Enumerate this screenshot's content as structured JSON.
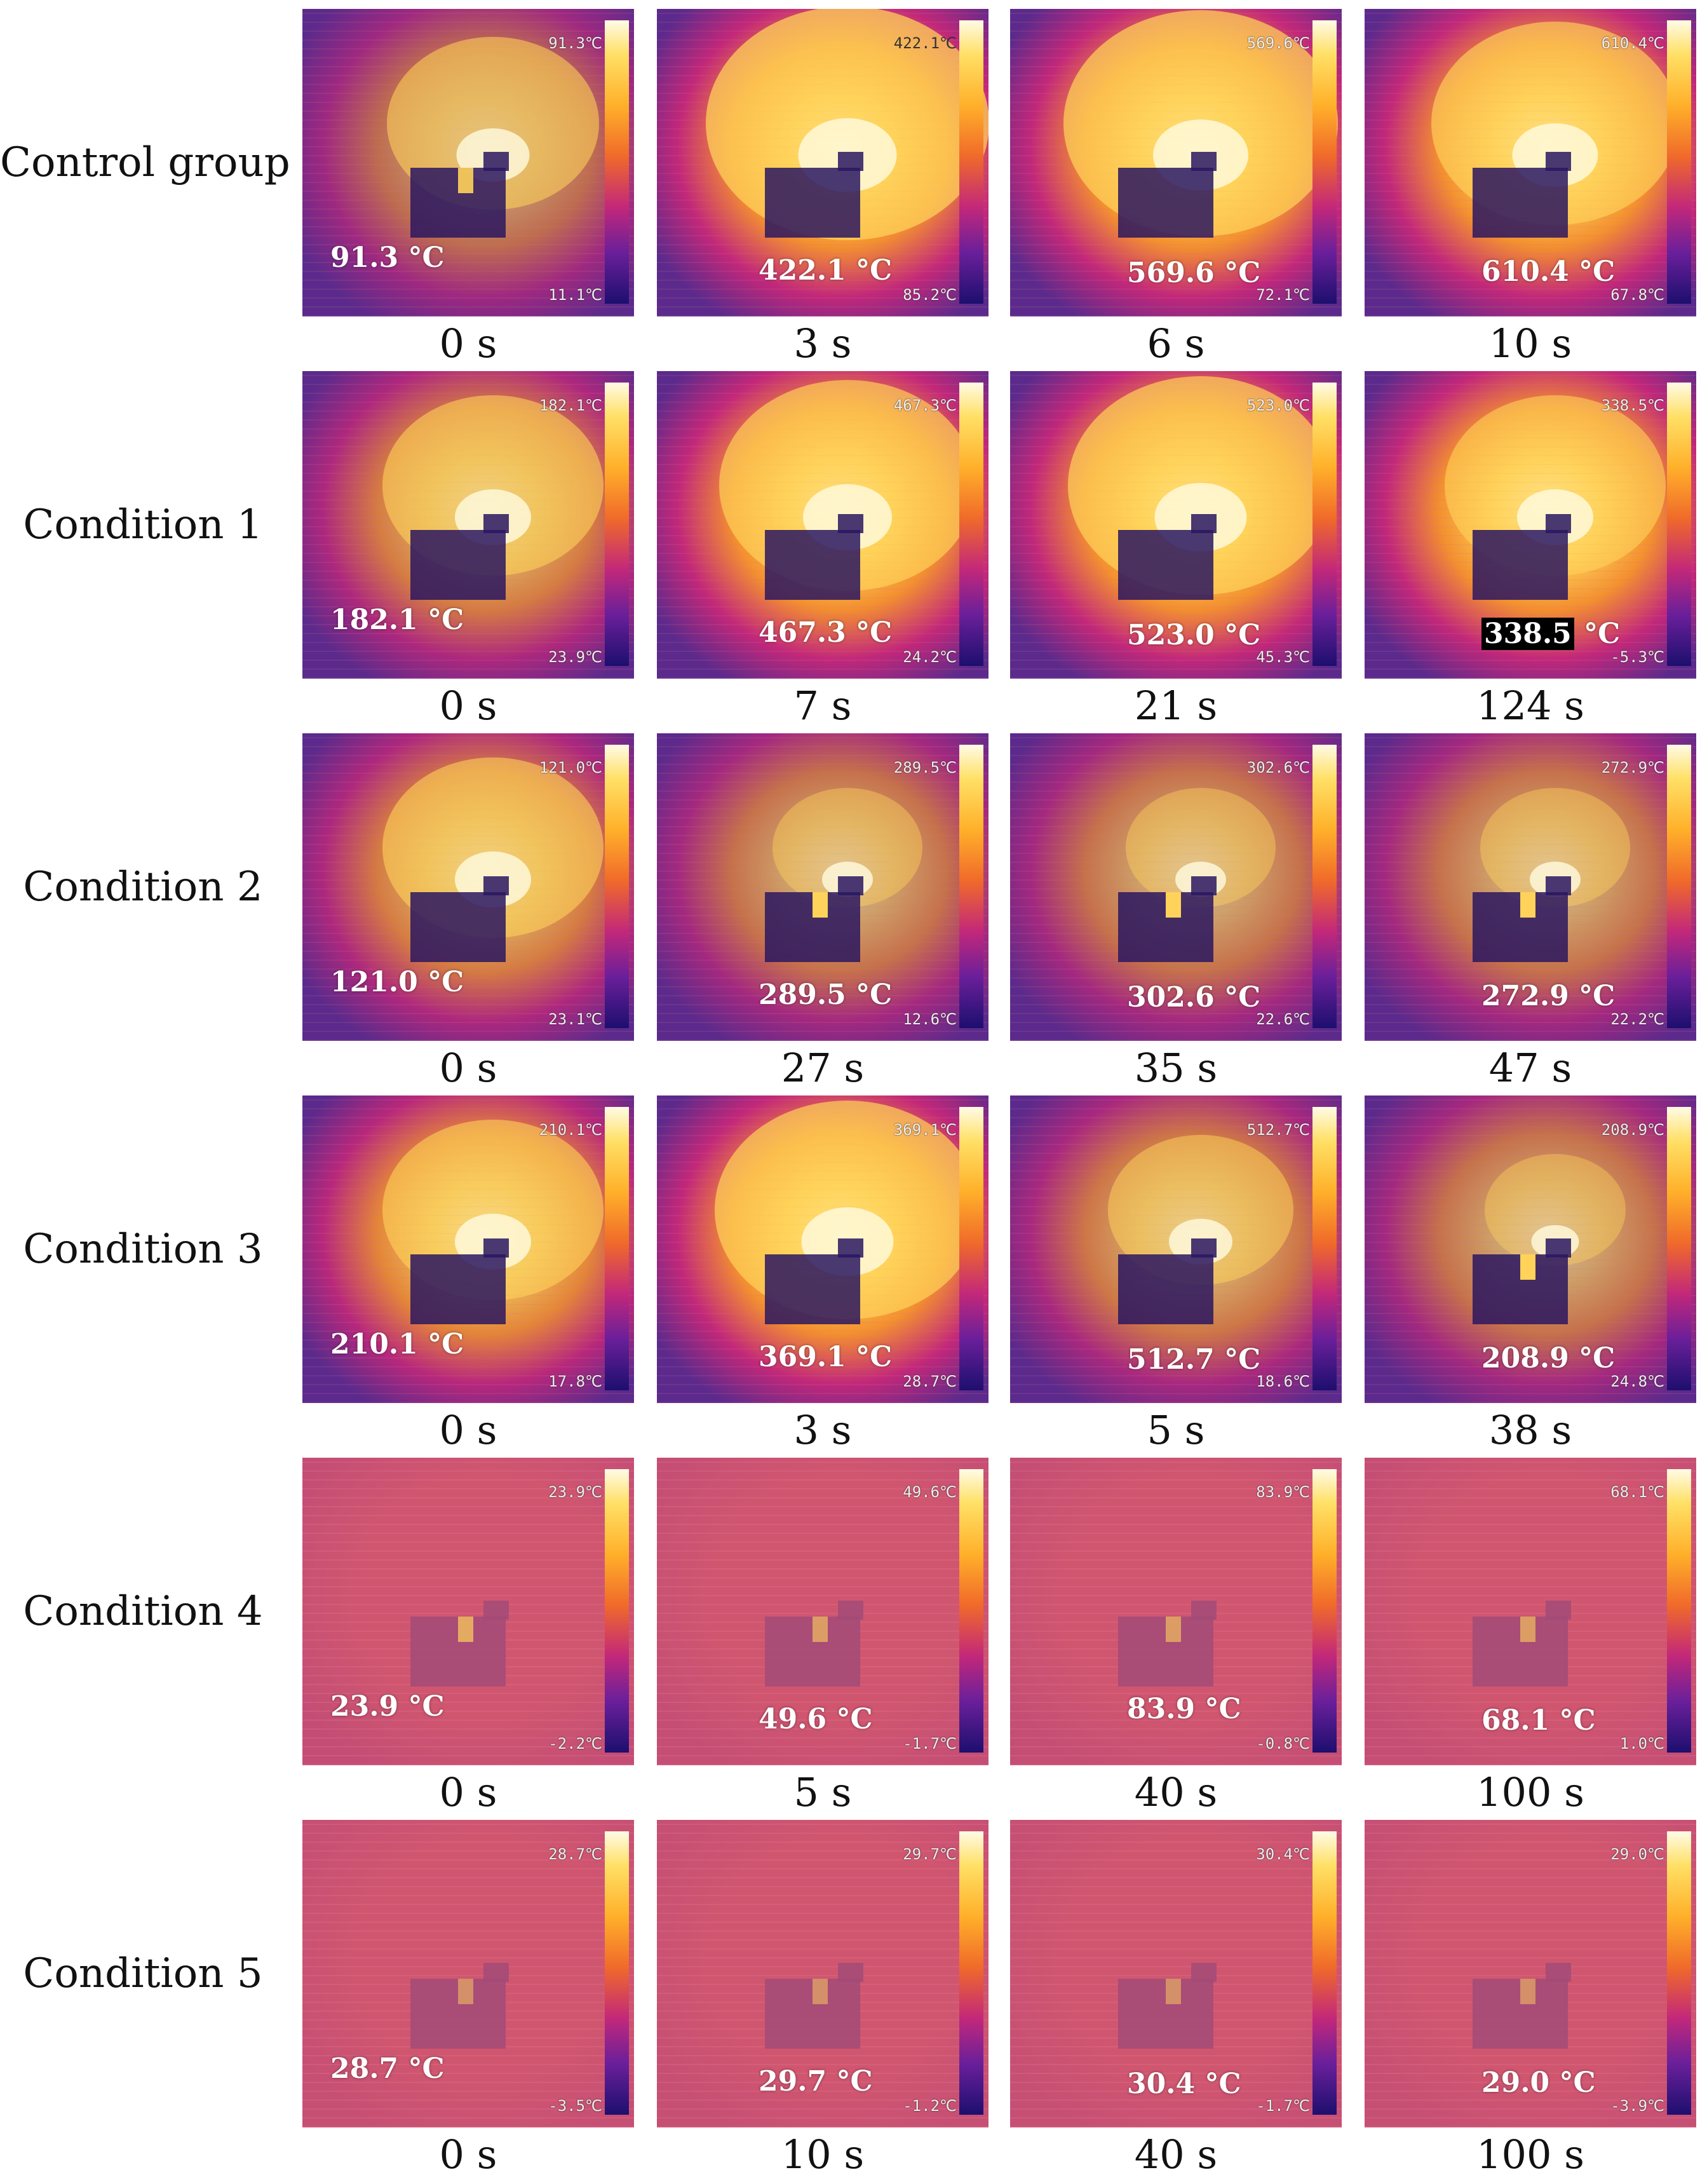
{
  "colors": {
    "cool": "#5b2a8c",
    "mid": "#c2287a",
    "warm": "#f3902f",
    "hot": "#ffd35a",
    "bg_low": "#d0566f"
  },
  "rows": [
    {
      "label": "Control group",
      "frames": [
        {
          "time": "0 s",
          "temp": "91.3 °C",
          "max": "91.3℃",
          "min": "11.1℃",
          "heat": 0.25,
          "fire": 0.55
        },
        {
          "time": "3 s",
          "temp": "422.1 °C",
          "max": "422.1℃",
          "min": "85.2℃",
          "heat": 0.7,
          "fire": 0.95
        },
        {
          "time": "6 s",
          "temp": "569.6 °C",
          "max": "569.6℃",
          "min": "72.1℃",
          "heat": 0.85,
          "fire": 0.9
        },
        {
          "time": "10 s",
          "temp": "610.4 °C",
          "max": "610.4℃",
          "min": "67.8℃",
          "heat": 0.9,
          "fire": 0.75
        }
      ]
    },
    {
      "label": "Condition 1",
      "frames": [
        {
          "time": "0 s",
          "temp": "182.1 °C",
          "max": "182.1℃",
          "min": "23.9℃",
          "heat": 0.4,
          "fire": 0.6
        },
        {
          "time": "7 s",
          "temp": "467.3 °C",
          "max": "467.3℃",
          "min": "24.2℃",
          "heat": 0.75,
          "fire": 0.8
        },
        {
          "time": "21 s",
          "temp": "523.0 °C",
          "max": "523.0℃",
          "min": "45.3℃",
          "heat": 0.85,
          "fire": 0.85
        },
        {
          "time": "124 s",
          "temp": "338.5 °C",
          "max": "338.5℃",
          "min": "-5.3℃",
          "heat": 0.7,
          "fire": 0.6
        }
      ]
    },
    {
      "label": "Condition 2",
      "frames": [
        {
          "time": "0 s",
          "temp": "121.0 °C",
          "max": "121.0℃",
          "min": "23.1℃",
          "heat": 0.4,
          "fire": 0.6
        },
        {
          "time": "27 s",
          "temp": "289.5 °C",
          "max": "289.5℃",
          "min": "12.6℃",
          "heat": 0.3,
          "fire": 0.2
        },
        {
          "time": "35 s",
          "temp": "302.6 °C",
          "max": "302.6℃",
          "min": "22.6℃",
          "heat": 0.3,
          "fire": 0.2
        },
        {
          "time": "47 s",
          "temp": "272.9 °C",
          "max": "272.9℃",
          "min": "22.2℃",
          "heat": 0.3,
          "fire": 0.2
        }
      ]
    },
    {
      "label": "Condition 3",
      "frames": [
        {
          "time": "0 s",
          "temp": "210.1 °C",
          "max": "210.1℃",
          "min": "17.8℃",
          "heat": 0.5,
          "fire": 0.6
        },
        {
          "time": "3 s",
          "temp": "369.1 °C",
          "max": "369.1℃",
          "min": "28.7℃",
          "heat": 0.7,
          "fire": 0.85
        },
        {
          "time": "5 s",
          "temp": "512.7 °C",
          "max": "512.7℃",
          "min": "18.6℃",
          "heat": 0.35,
          "fire": 0.4
        },
        {
          "time": "38 s",
          "temp": "208.9 °C",
          "max": "208.9℃",
          "min": "24.8℃",
          "heat": 0.3,
          "fire": 0.15
        }
      ]
    },
    {
      "label": "Condition 4",
      "frames": [
        {
          "time": "0 s",
          "temp": "23.9 °C",
          "max": "23.9℃",
          "min": "-2.2℃",
          "heat": 0.15,
          "fire": 0.1
        },
        {
          "time": "5 s",
          "temp": "49.6 °C",
          "max": "49.6℃",
          "min": "-1.7℃",
          "heat": 0.1,
          "fire": 0.05
        },
        {
          "time": "40 s",
          "temp": "83.9 °C",
          "max": "83.9℃",
          "min": "-0.8℃",
          "heat": 0.1,
          "fire": 0.05
        },
        {
          "time": "100 s",
          "temp": "68.1 °C",
          "max": "68.1℃",
          "min": "1.0℃",
          "heat": 0.1,
          "fire": 0.05
        }
      ]
    },
    {
      "label": "Condition 5",
      "frames": [
        {
          "time": "0 s",
          "temp": "28.7 °C",
          "max": "28.7℃",
          "min": "-3.5℃",
          "heat": 0.05,
          "fire": 0.02
        },
        {
          "time": "10 s",
          "temp": "29.7 °C",
          "max": "29.7℃",
          "min": "-1.2℃",
          "heat": 0.05,
          "fire": 0.02
        },
        {
          "time": "40 s",
          "temp": "30.4 °C",
          "max": "30.4℃",
          "min": "-1.7℃",
          "heat": 0.05,
          "fire": 0.02
        },
        {
          "time": "100 s",
          "temp": "29.0 °C",
          "max": "29.0℃",
          "min": "-3.9℃",
          "heat": 0.05,
          "fire": 0.02
        }
      ]
    }
  ]
}
